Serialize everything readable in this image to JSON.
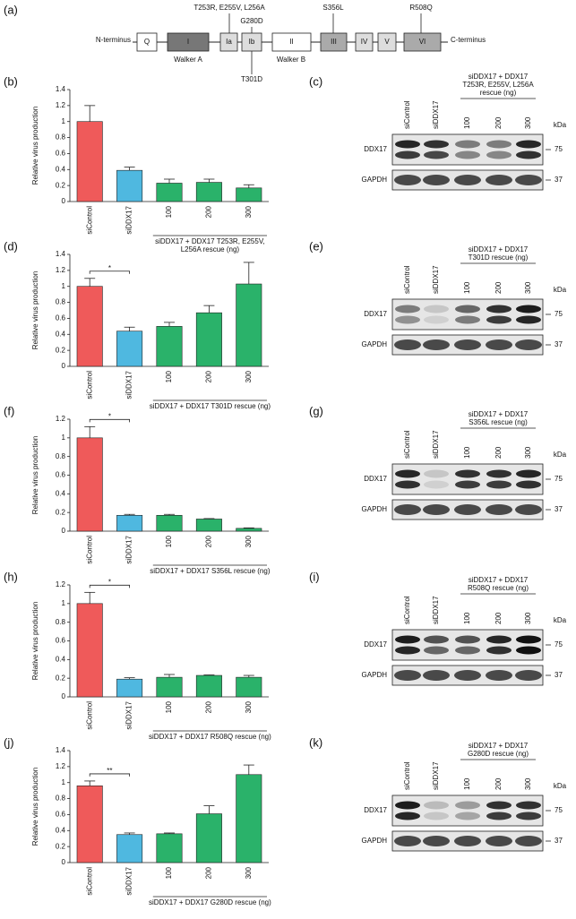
{
  "domain_diagram": {
    "panel": "(a)",
    "n_terminus": "N-terminus",
    "c_terminus": "C-terminus",
    "domains": [
      "Q",
      "I",
      "Ia",
      "Ib",
      "II",
      "III",
      "IV",
      "V",
      "VI"
    ],
    "walker_a": "Walker A",
    "walker_b": "Walker B",
    "mutations": [
      "T253R, E255V, L256A",
      "G280D",
      "T301D",
      "S356L",
      "R508Q"
    ]
  },
  "chart_data": [
    {
      "type": "bar",
      "panel": "(b)",
      "ylabel": "Relative virus production",
      "categories": [
        "siControl",
        "siDDX17",
        "100",
        "200",
        "300"
      ],
      "values": [
        1.0,
        0.39,
        0.23,
        0.24,
        0.17
      ],
      "errors": [
        0.2,
        0.04,
        0.05,
        0.04,
        0.04
      ],
      "colors": [
        "#ef5a5a",
        "#4fb8e0",
        "#2ab26a",
        "#2ab26a",
        "#2ab26a"
      ],
      "ylim": [
        0,
        1.4
      ],
      "yticks": [
        0,
        0.2,
        0.4,
        0.6,
        0.8,
        1,
        1.2,
        1.4
      ],
      "group_label": [
        "siDDX17 + DDX17 T253R, E255V,",
        "L256A rescue (ng)"
      ]
    },
    {
      "type": "bar",
      "panel": "(d)",
      "ylabel": "Relative virus production",
      "categories": [
        "siControl",
        "siDDX17",
        "100",
        "200",
        "300"
      ],
      "values": [
        1.0,
        0.44,
        0.5,
        0.67,
        1.03
      ],
      "errors": [
        0.1,
        0.05,
        0.05,
        0.09,
        0.27
      ],
      "colors": [
        "#ef5a5a",
        "#4fb8e0",
        "#2ab26a",
        "#2ab26a",
        "#2ab26a"
      ],
      "ylim": [
        0,
        1.4
      ],
      "yticks": [
        0,
        0.2,
        0.4,
        0.6,
        0.8,
        1,
        1.2,
        1.4
      ],
      "group_label": [
        "siDDX17 + DDX17 T301D rescue (ng)"
      ],
      "significance": "*"
    },
    {
      "type": "bar",
      "panel": "(f)",
      "ylabel": "Relative virus production",
      "categories": [
        "siControl",
        "siDDX17",
        "100",
        "200",
        "300"
      ],
      "values": [
        1.0,
        0.17,
        0.17,
        0.13,
        0.03
      ],
      "errors": [
        0.12,
        0.01,
        0.01,
        0.005,
        0.005
      ],
      "colors": [
        "#ef5a5a",
        "#4fb8e0",
        "#2ab26a",
        "#2ab26a",
        "#2ab26a"
      ],
      "ylim": [
        0,
        1.2
      ],
      "yticks": [
        0,
        0.2,
        0.4,
        0.6,
        0.8,
        1,
        1.2
      ],
      "group_label": [
        "siDDX17 + DDX17 S356L rescue (ng)"
      ],
      "significance": "*"
    },
    {
      "type": "bar",
      "panel": "(h)",
      "ylabel": "Relative virus production",
      "categories": [
        "siControl",
        "siDDX17",
        "100",
        "200",
        "300"
      ],
      "values": [
        1.0,
        0.19,
        0.21,
        0.23,
        0.21
      ],
      "errors": [
        0.12,
        0.015,
        0.03,
        0.005,
        0.02
      ],
      "colors": [
        "#ef5a5a",
        "#4fb8e0",
        "#2ab26a",
        "#2ab26a",
        "#2ab26a"
      ],
      "ylim": [
        0,
        1.2
      ],
      "yticks": [
        0,
        0.2,
        0.4,
        0.6,
        0.8,
        1,
        1.2
      ],
      "group_label": [
        "siDDX17 + DDX17 R508Q rescue (ng)"
      ],
      "significance": "*"
    },
    {
      "type": "bar",
      "panel": "(j)",
      "ylabel": "Relative virus production",
      "categories": [
        "siControl",
        "siDDX17",
        "100",
        "200",
        "300"
      ],
      "values": [
        0.96,
        0.35,
        0.36,
        0.61,
        1.1
      ],
      "errors": [
        0.06,
        0.02,
        0.01,
        0.1,
        0.12
      ],
      "colors": [
        "#ef5a5a",
        "#4fb8e0",
        "#2ab26a",
        "#2ab26a",
        "#2ab26a"
      ],
      "ylim": [
        0,
        1.4
      ],
      "yticks": [
        0,
        0.2,
        0.4,
        0.6,
        0.8,
        1,
        1.2,
        1.4
      ],
      "group_label": [
        "siDDX17 + DDX17 G280D rescue (ng)"
      ],
      "significance": "**"
    }
  ],
  "blots": [
    {
      "panel": "(c)",
      "header": [
        "siDDX17 + DDX17",
        "T253R, E255V, L256A",
        "rescue (ng)"
      ],
      "lanes": [
        "siControl",
        "siDDX17",
        "100",
        "200",
        "300"
      ],
      "rows": [
        "DDX17",
        "GAPDH"
      ],
      "markers": [
        "75",
        "37"
      ],
      "unit": "kDa"
    },
    {
      "panel": "(e)",
      "header": [
        "siDDX17 + DDX17",
        "T301D rescue (ng)"
      ],
      "lanes": [
        "siControl",
        "siDDX17",
        "100",
        "200",
        "300"
      ],
      "rows": [
        "DDX17",
        "GAPDH"
      ],
      "markers": [
        "75",
        "37"
      ],
      "unit": "kDa"
    },
    {
      "panel": "(g)",
      "header": [
        "siDDX17 + DDX17",
        "S356L rescue (ng)"
      ],
      "lanes": [
        "siControl",
        "siDDX17",
        "100",
        "200",
        "300"
      ],
      "rows": [
        "DDX17",
        "GAPDH"
      ],
      "markers": [
        "75",
        "37"
      ],
      "unit": "kDa"
    },
    {
      "panel": "(i)",
      "header": [
        "siDDX17 + DDX17",
        "R508Q rescue (ng)"
      ],
      "lanes": [
        "siControl",
        "siDDX17",
        "100",
        "200",
        "300"
      ],
      "rows": [
        "DDX17",
        "GAPDH"
      ],
      "markers": [
        "75",
        "37"
      ],
      "unit": "kDa"
    },
    {
      "panel": "(k)",
      "header": [
        "siDDX17 + DDX17",
        "G280D rescue (ng)"
      ],
      "lanes": [
        "siControl",
        "siDDX17",
        "100",
        "200",
        "300"
      ],
      "rows": [
        "DDX17",
        "GAPDH"
      ],
      "markers": [
        "75",
        "37"
      ],
      "unit": "kDa"
    }
  ]
}
